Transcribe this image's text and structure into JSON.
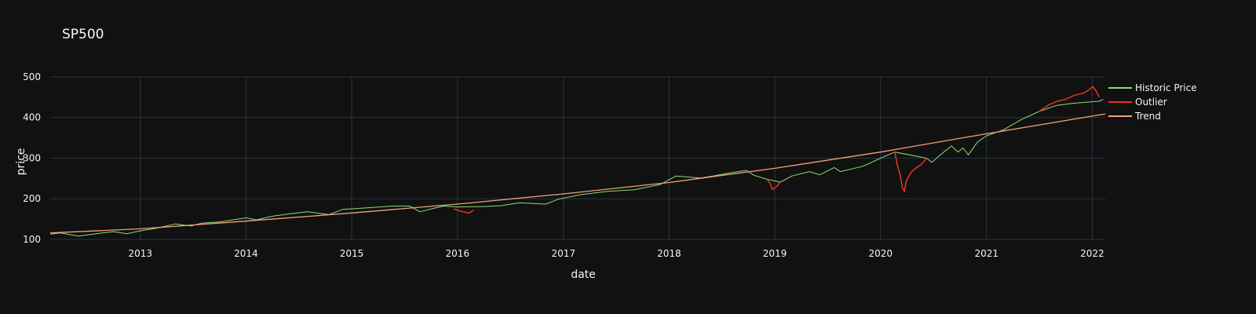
{
  "chart_data": {
    "type": "line",
    "title": "SP500",
    "xlabel": "date",
    "ylabel": "price",
    "x_range": [
      "2012-02-25",
      "2022-02-15"
    ],
    "y_range": [
      98,
      500
    ],
    "x_ticks": [
      "2013",
      "2014",
      "2015",
      "2016",
      "2017",
      "2018",
      "2019",
      "2020",
      "2021",
      "2022"
    ],
    "y_ticks": [
      100,
      200,
      300,
      400,
      500
    ],
    "grid": true,
    "legend_position": "top-right",
    "series": [
      {
        "name": "Historic Price",
        "color": "#88dd77",
        "points": [
          [
            "2012-02-25",
            113
          ],
          [
            "2012-04-01",
            116
          ],
          [
            "2012-06-01",
            108
          ],
          [
            "2012-08-01",
            114
          ],
          [
            "2012-10-01",
            119
          ],
          [
            "2012-11-15",
            114
          ],
          [
            "2013-01-01",
            121
          ],
          [
            "2013-03-01",
            128
          ],
          [
            "2013-05-01",
            138
          ],
          [
            "2013-06-25",
            133
          ],
          [
            "2013-08-01",
            140
          ],
          [
            "2013-10-01",
            143
          ],
          [
            "2014-01-01",
            153
          ],
          [
            "2014-02-05",
            148
          ],
          [
            "2014-04-01",
            157
          ],
          [
            "2014-06-01",
            163
          ],
          [
            "2014-08-01",
            168
          ],
          [
            "2014-10-15",
            161
          ],
          [
            "2014-12-01",
            174
          ],
          [
            "2015-03-01",
            178
          ],
          [
            "2015-05-20",
            182
          ],
          [
            "2015-07-20",
            182
          ],
          [
            "2015-08-25",
            168
          ],
          [
            "2015-10-01",
            175
          ],
          [
            "2015-11-15",
            182
          ],
          [
            "2016-01-01",
            180
          ],
          [
            "2016-04-01",
            181
          ],
          [
            "2016-06-01",
            183
          ],
          [
            "2016-08-01",
            190
          ],
          [
            "2016-11-01",
            187
          ],
          [
            "2016-12-15",
            199
          ],
          [
            "2017-03-01",
            210
          ],
          [
            "2017-06-01",
            218
          ],
          [
            "2017-09-01",
            222
          ],
          [
            "2017-12-01",
            235
          ],
          [
            "2018-01-25",
            256
          ],
          [
            "2018-04-20",
            251
          ],
          [
            "2018-06-01",
            256
          ],
          [
            "2018-08-01",
            264
          ],
          [
            "2018-09-25",
            270
          ],
          [
            "2018-10-20",
            258
          ],
          [
            "2018-12-05",
            248
          ],
          [
            "2019-01-20",
            241
          ],
          [
            "2019-03-01",
            256
          ],
          [
            "2019-05-01",
            267
          ],
          [
            "2019-06-05",
            259
          ],
          [
            "2019-07-25",
            277
          ],
          [
            "2019-08-15",
            267
          ],
          [
            "2019-11-01",
            280
          ],
          [
            "2020-01-01",
            300
          ],
          [
            "2020-02-19",
            315
          ],
          [
            "2020-06-08",
            300
          ],
          [
            "2020-06-26",
            290
          ],
          [
            "2020-08-01",
            312
          ],
          [
            "2020-09-02",
            330
          ],
          [
            "2020-09-24",
            315
          ],
          [
            "2020-10-12",
            325
          ],
          [
            "2020-10-30",
            308
          ],
          [
            "2020-12-01",
            340
          ],
          [
            "2021-01-01",
            355
          ],
          [
            "2021-03-01",
            370
          ],
          [
            "2021-05-01",
            395
          ],
          [
            "2021-07-01",
            415
          ],
          [
            "2021-09-01",
            430
          ],
          [
            "2021-10-25",
            435
          ],
          [
            "2022-01-25",
            440
          ],
          [
            "2022-02-08",
            445
          ]
        ]
      },
      {
        "name": "Outlier",
        "color": "#e8351e",
        "segments": [
          [
            [
              "2015-12-20",
              175
            ],
            [
              "2016-01-20",
              168
            ],
            [
              "2016-02-11",
              165
            ],
            [
              "2016-02-26",
              172
            ]
          ],
          [
            [
              "2018-12-05",
              248
            ],
            [
              "2018-12-15",
              238
            ],
            [
              "2018-12-24",
              223
            ],
            [
              "2019-01-08",
              231
            ],
            [
              "2019-01-20",
              241
            ]
          ],
          [
            [
              "2020-02-19",
              315
            ],
            [
              "2020-02-28",
              283
            ],
            [
              "2020-03-09",
              258
            ],
            [
              "2020-03-16",
              228
            ],
            [
              "2020-03-23",
              218
            ],
            [
              "2020-03-30",
              244
            ],
            [
              "2020-04-15",
              265
            ],
            [
              "2020-05-01",
              275
            ],
            [
              "2020-05-20",
              284
            ],
            [
              "2020-06-08",
              300
            ]
          ],
          [
            [
              "2021-07-01",
              415
            ],
            [
              "2021-08-01",
              430
            ],
            [
              "2021-09-01",
              440
            ],
            [
              "2021-10-01",
              445
            ],
            [
              "2021-11-01",
              455
            ],
            [
              "2021-12-01",
              460
            ],
            [
              "2021-12-20",
              468
            ],
            [
              "2022-01-03",
              476
            ],
            [
              "2022-01-15",
              465
            ],
            [
              "2022-01-25",
              450
            ]
          ]
        ]
      },
      {
        "name": "Trend",
        "color": "#f2a07b",
        "points": [
          [
            "2012-02-25",
            116
          ],
          [
            "2013-01-01",
            126
          ],
          [
            "2014-01-01",
            145
          ],
          [
            "2015-01-01",
            165
          ],
          [
            "2016-01-01",
            187
          ],
          [
            "2017-01-01",
            212
          ],
          [
            "2018-01-01",
            240
          ],
          [
            "2019-01-01",
            275
          ],
          [
            "2020-01-01",
            315
          ],
          [
            "2021-01-01",
            360
          ],
          [
            "2022-02-15",
            409
          ]
        ]
      }
    ]
  }
}
